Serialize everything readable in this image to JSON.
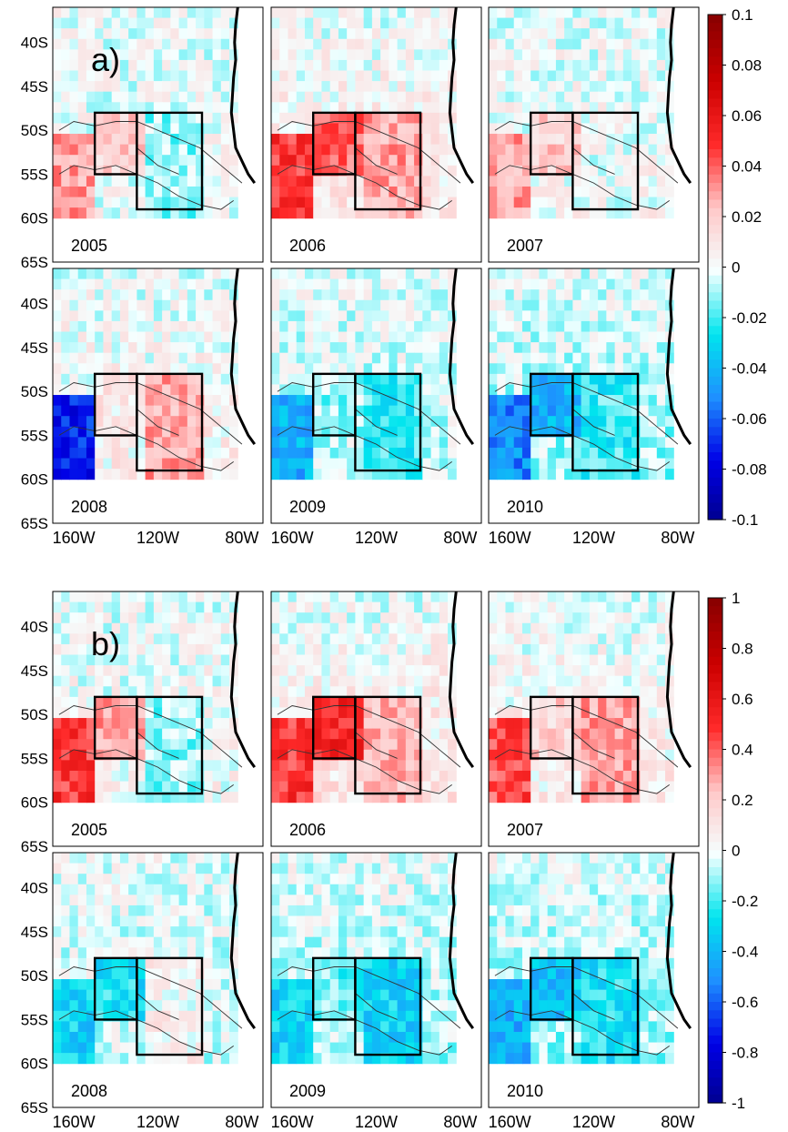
{
  "chart_data": [
    {
      "type": "heatmap",
      "panel_label": "a)",
      "years": [
        "2005",
        "2006",
        "2007",
        "2008",
        "2009",
        "2010"
      ],
      "lat_ticks": [
        "40S",
        "45S",
        "50S",
        "55S",
        "60S",
        "65S"
      ],
      "lon_ticks": [
        "160W",
        "120W",
        "80W"
      ],
      "colorbar": {
        "min": -0.1,
        "max": 0.1,
        "ticks": [
          "0.1",
          "0.08",
          "0.06",
          "0.04",
          "0.02",
          "0",
          "-0.02",
          "-0.04",
          "-0.06",
          "-0.08",
          "-0.1"
        ],
        "colormap": [
          "#00008b",
          "#0000e6",
          "#1e90ff",
          "#00e5ee",
          "#f5ffff",
          "#ffc8c8",
          "#ff2a2a",
          "#cc0000",
          "#8b0000"
        ]
      },
      "anomaly_by_year": {
        "2005": {
          "west_box": 0.02,
          "east_box": -0.01,
          "southwest_band": 0.03
        },
        "2006": {
          "west_box": 0.04,
          "east_box": 0.03,
          "southwest_band": 0.05
        },
        "2007": {
          "west_box": 0.02,
          "east_box": 0.0,
          "southwest_band": 0.03
        },
        "2008": {
          "west_box": 0.01,
          "east_box": 0.03,
          "southwest_band": -0.07
        },
        "2009": {
          "west_box": -0.01,
          "east_box": -0.02,
          "southwest_band": -0.04
        },
        "2010": {
          "west_box": -0.04,
          "east_box": -0.02,
          "southwest_band": -0.05
        }
      }
    },
    {
      "type": "heatmap",
      "panel_label": "b)",
      "years": [
        "2005",
        "2006",
        "2007",
        "2008",
        "2009",
        "2010"
      ],
      "lat_ticks": [
        "40S",
        "45S",
        "50S",
        "55S",
        "60S",
        "65S"
      ],
      "lon_ticks": [
        "160W",
        "120W",
        "80W"
      ],
      "colorbar": {
        "min": -1,
        "max": 1,
        "ticks": [
          "1",
          "0.8",
          "0.6",
          "0.4",
          "0.2",
          "0",
          "-0.2",
          "-0.4",
          "-0.6",
          "-0.8",
          "-1"
        ],
        "colormap": [
          "#00008b",
          "#0000e6",
          "#1e90ff",
          "#00e5ee",
          "#f5ffff",
          "#ffc8c8",
          "#ff2a2a",
          "#cc0000",
          "#8b0000"
        ]
      },
      "anomaly_by_year": {
        "2005": {
          "west_box": 0.3,
          "east_box": -0.1,
          "southwest_band": 0.5
        },
        "2006": {
          "west_box": 0.55,
          "east_box": 0.25,
          "southwest_band": 0.5
        },
        "2007": {
          "west_box": 0.2,
          "east_box": 0.3,
          "southwest_band": 0.45
        },
        "2008": {
          "west_box": -0.25,
          "east_box": 0.05,
          "southwest_band": -0.3
        },
        "2009": {
          "west_box": -0.15,
          "east_box": -0.3,
          "southwest_band": -0.3
        },
        "2010": {
          "west_box": -0.35,
          "east_box": -0.25,
          "southwest_band": -0.4
        }
      }
    }
  ]
}
